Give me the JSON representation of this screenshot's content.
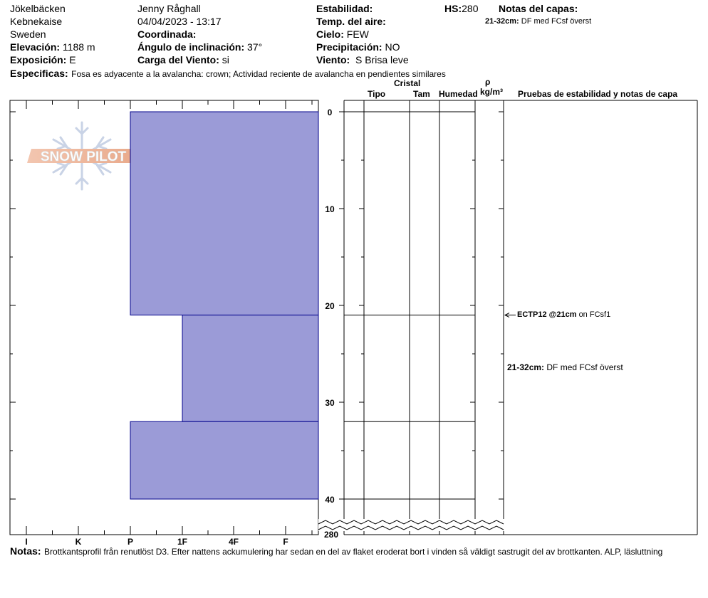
{
  "header": {
    "location": "Jökelbäcken",
    "region": "Kebnekaise",
    "country": "Sweden",
    "elevation_label": "Elevación:",
    "elevation_value": "1188 m",
    "aspect_label": "Exposición:",
    "aspect_value": "E",
    "observer": "Jenny Råghall",
    "datetime": "04/04/2023 - 13:17",
    "coord_label": "Coordinada:",
    "slope_label": "Ángulo de inclinación:",
    "slope_value": "37°",
    "wind_load_label": "Carga del Viento:",
    "wind_load_value": "si",
    "stability_label": "Estabilidad:",
    "air_temp_label": "Temp. del aire:",
    "sky_label": "Cielo:",
    "sky_value": "FEW",
    "precip_label": "Precipitación:",
    "precip_value": "NO",
    "wind_label": "Viento:",
    "wind_value": "S Brisa leve",
    "hs_label": "HS:",
    "hs_value": "280",
    "layer_notes_label": "Notas del capas:",
    "layer_notes_range": "21-32cm:",
    "layer_notes_text": "DF med FCsf överst",
    "specifics_label": "Especificas:",
    "specifics_text": "Fosa es adyacente a la avalancha: crown;  Actividad reciente de avalancha en pendientes similares"
  },
  "logo": {
    "text": "SNOW PILOT"
  },
  "columns": {
    "crystal": "Cristal",
    "type": "Tipo",
    "size": "Tam",
    "moisture": "Humedad",
    "rho": "ρ",
    "density_unit": "kg/m³",
    "tests_header": "Pruebas de estabilidad y notas de capa"
  },
  "notes": {
    "label": "Notas:",
    "text": "Brottkantsprofil från renutlöst D3. Efter nattens ackumulering har sedan en del av flaket eroderat bort i vinden så väldigt sastrugit del av brottkanten. ALP, läslutt­ning"
  },
  "stability_test": {
    "depth": 21,
    "label": "ECTP12 @21cm",
    "suffix": "on FCsf1"
  },
  "layer_note": {
    "depth_top": 21,
    "depth_bottom": 32,
    "range": "21-32cm:",
    "text": "DF med FCsf överst"
  },
  "chart_data": {
    "type": "bar",
    "x_axis": {
      "name": "hardness",
      "ticks": [
        "I",
        "K",
        "P",
        "1F",
        "4F",
        "F"
      ]
    },
    "y_axis": {
      "name": "depth_cm",
      "range": [
        0,
        40
      ],
      "ticks": [
        0,
        10,
        20,
        30,
        40
      ],
      "break_label": "280"
    },
    "layers": [
      {
        "top": 0,
        "bottom": 21,
        "hardness": "P"
      },
      {
        "top": 21,
        "bottom": 32,
        "hardness": "1F"
      },
      {
        "top": 32,
        "bottom": 40,
        "hardness": "P"
      }
    ],
    "layer_boundaries": [
      0,
      21,
      32,
      40
    ],
    "colors": {
      "fill": "#9b9bd7",
      "edge": "#00008b"
    }
  }
}
